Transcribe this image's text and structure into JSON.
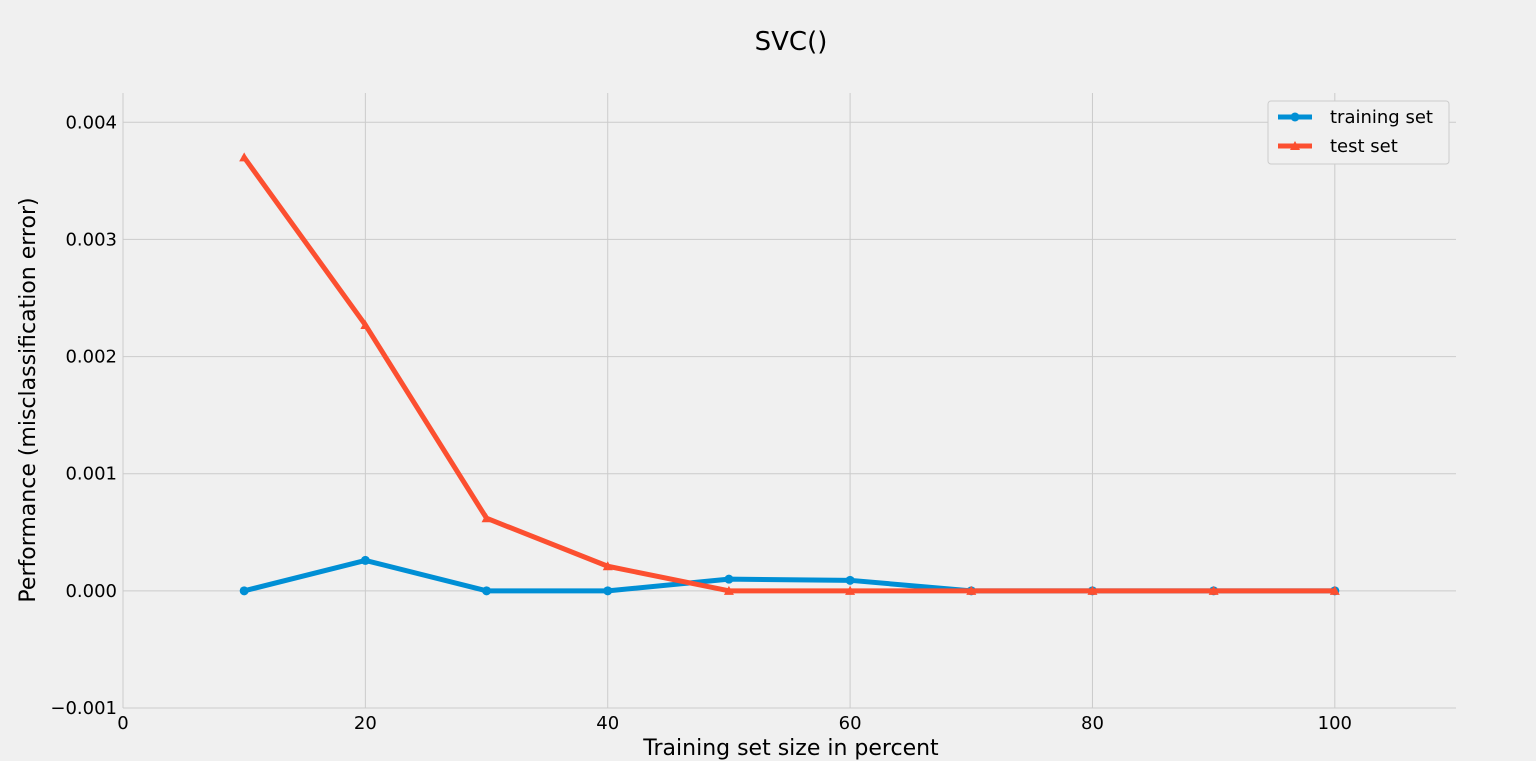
{
  "chart_data": {
    "type": "line",
    "title": "SVC()",
    "xlabel": "Training set size in percent",
    "ylabel": "Performance (misclassification error)",
    "xlim": [
      0,
      110
    ],
    "ylim": [
      -0.001,
      0.00425
    ],
    "xticks": [
      0,
      20,
      40,
      60,
      80,
      100
    ],
    "xtick_labels": [
      "0",
      "20",
      "40",
      "60",
      "80",
      "100"
    ],
    "yticks": [
      -0.001,
      0.0,
      0.001,
      0.002,
      0.003,
      0.004
    ],
    "ytick_labels": [
      "−0.001",
      "0.000",
      "0.001",
      "0.002",
      "0.003",
      "0.004"
    ],
    "grid": true,
    "legend_position": "top-right",
    "x": [
      10,
      20,
      30,
      40,
      50,
      60,
      70,
      80,
      90,
      100
    ],
    "series": [
      {
        "name": "training set",
        "color": "#008fd5",
        "marker": "circle",
        "values": [
          0.0,
          0.00026,
          0.0,
          0.0,
          0.0001,
          9e-05,
          0.0,
          0.0,
          0.0,
          0.0
        ]
      },
      {
        "name": "test set",
        "color": "#fc4f30",
        "marker": "triangle",
        "values": [
          0.0037,
          0.00227,
          0.00062,
          0.00021,
          0.0,
          0.0,
          0.0,
          0.0,
          0.0,
          0.0
        ]
      }
    ]
  }
}
